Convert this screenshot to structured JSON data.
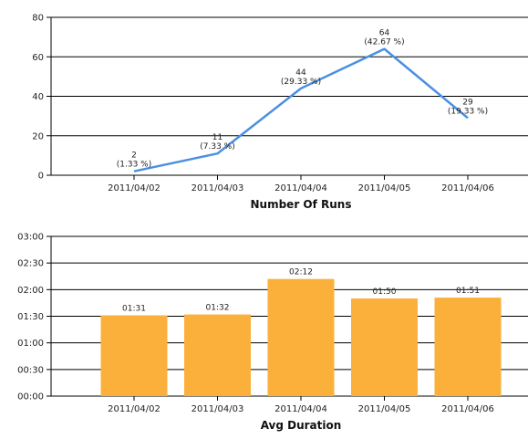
{
  "chart_data": [
    {
      "type": "line",
      "title": "Number Of Runs",
      "categories": [
        "2011/04/02",
        "2011/04/03",
        "2011/04/04",
        "2011/04/05",
        "2011/04/06"
      ],
      "values": [
        2,
        11,
        44,
        64,
        29
      ],
      "point_labels": [
        [
          "2",
          "(1.33 %)"
        ],
        [
          "11",
          "(7.33 %)"
        ],
        [
          "44",
          "(29.33 %)"
        ],
        [
          "64",
          "(42.67 %)"
        ],
        [
          "29",
          "(19.33 %)"
        ]
      ],
      "y_ticks": [
        "0",
        "20",
        "40",
        "60",
        "80"
      ],
      "ylim": [
        0,
        80
      ],
      "grid": true,
      "color": "#4a90e2"
    },
    {
      "type": "bar",
      "title": "Avg Duration",
      "categories": [
        "2011/04/02",
        "2011/04/03",
        "2011/04/04",
        "2011/04/05",
        "2011/04/06"
      ],
      "values_minutes": [
        91,
        92,
        132,
        110,
        111
      ],
      "value_labels": [
        "01:31",
        "01:32",
        "02:12",
        "01:50",
        "01:51"
      ],
      "y_ticks": [
        "00:00",
        "00:30",
        "01:00",
        "01:30",
        "02:00",
        "02:30",
        "03:00"
      ],
      "ylim_minutes": [
        0,
        180
      ],
      "grid": true,
      "color": "#fbb03b"
    }
  ]
}
